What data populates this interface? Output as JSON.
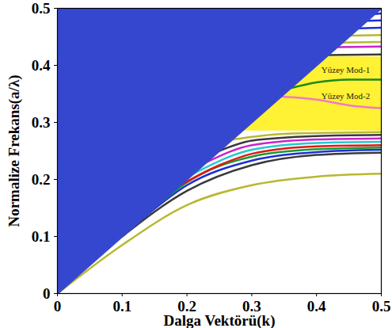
{
  "chart_data": {
    "type": "line",
    "xlabel": "Dalga Vektörü(k)",
    "ylabel": "Normalize Frekans(a/λ)",
    "xlim": [
      0,
      0.5
    ],
    "ylim": [
      0,
      0.5
    ],
    "xticks": [
      0,
      0.1,
      0.2,
      0.3,
      0.4,
      0.5
    ],
    "yticks": [
      0,
      0.1,
      0.2,
      0.3,
      0.4,
      0.5
    ],
    "grid": false,
    "light_line": {
      "color": "#3547cf",
      "x": [
        0,
        0.5
      ],
      "y": [
        0,
        0.5
      ]
    },
    "band_gap": {
      "color": "#fff133",
      "y": [
        0.285,
        0.415
      ]
    },
    "series": [
      {
        "color": "#b8b830",
        "x": [
          0,
          0.1,
          0.2,
          0.3,
          0.4,
          0.5
        ],
        "values": [
          0,
          0.085,
          0.155,
          0.19,
          0.205,
          0.21
        ]
      },
      {
        "color": "#3a3a3a",
        "x": [
          0.1,
          0.2,
          0.3,
          0.4,
          0.5
        ],
        "values": [
          0.1,
          0.18,
          0.225,
          0.243,
          0.247
        ]
      },
      {
        "color": "#1c2fd8",
        "x": [
          0.13,
          0.2,
          0.3,
          0.4,
          0.5
        ],
        "values": [
          0.13,
          0.19,
          0.233,
          0.248,
          0.252
        ]
      },
      {
        "color": "#1a9a2a",
        "x": [
          0.16,
          0.2,
          0.3,
          0.4,
          0.5
        ],
        "values": [
          0.16,
          0.195,
          0.24,
          0.253,
          0.256
        ]
      },
      {
        "color": "#e01818",
        "x": [
          0.19,
          0.25,
          0.3,
          0.4,
          0.5
        ],
        "values": [
          0.19,
          0.225,
          0.245,
          0.258,
          0.26
        ]
      },
      {
        "color": "#22cccc",
        "x": [
          0.21,
          0.3,
          0.4,
          0.5
        ],
        "values": [
          0.21,
          0.252,
          0.264,
          0.266
        ]
      },
      {
        "color": "#cc22cc",
        "x": [
          0.23,
          0.3,
          0.4,
          0.5
        ],
        "values": [
          0.23,
          0.26,
          0.27,
          0.272
        ]
      },
      {
        "color": "#3a3a3a",
        "x": [
          0.25,
          0.3,
          0.4,
          0.5
        ],
        "values": [
          0.25,
          0.268,
          0.276,
          0.278
        ]
      },
      {
        "color": "#b8b830",
        "x": [
          0.27,
          0.35,
          0.5
        ],
        "values": [
          0.27,
          0.28,
          0.283
        ]
      },
      {
        "color": "#1a8a1a",
        "x": [
          0.36,
          0.4,
          0.45,
          0.5
        ],
        "values": [
          0.36,
          0.37,
          0.375,
          0.375
        ]
      },
      {
        "color": "#ee7ac8",
        "x": [
          0.345,
          0.4,
          0.45,
          0.5
        ],
        "values": [
          0.345,
          0.34,
          0.33,
          0.325
        ]
      },
      {
        "color": "#3a3a3a",
        "x": [
          0.418,
          0.5
        ],
        "values": [
          0.418,
          0.419
        ]
      },
      {
        "color": "#cc22cc",
        "x": [
          0.432,
          0.5
        ],
        "values": [
          0.432,
          0.433
        ]
      },
      {
        "color": "#b8b830",
        "x": [
          0.44,
          0.5
        ],
        "values": [
          0.44,
          0.441
        ]
      },
      {
        "color": "#b8b830",
        "x": [
          0.452,
          0.5
        ],
        "values": [
          0.452,
          0.453
        ]
      },
      {
        "color": "#1c2fd8",
        "x": [
          0.465,
          0.5
        ],
        "values": [
          0.465,
          0.466
        ]
      },
      {
        "color": "#1c2fd8",
        "x": [
          0.478,
          0.5
        ],
        "values": [
          0.478,
          0.479
        ]
      },
      {
        "color": "#1c2fd8",
        "x": [
          0.49,
          0.5
        ],
        "values": [
          0.49,
          0.491
        ]
      }
    ],
    "annotations": [
      {
        "text": "Yüzey Mod-1",
        "x": 0.445,
        "y": 0.392
      },
      {
        "text": "Yüzey Mod-2",
        "x": 0.445,
        "y": 0.346
      }
    ]
  }
}
